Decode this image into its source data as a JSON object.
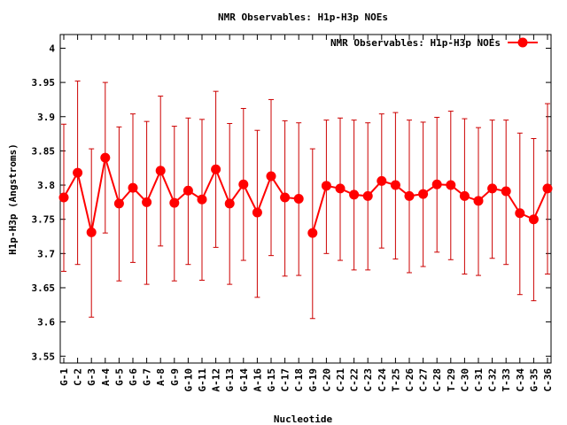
{
  "chart_data": {
    "type": "line",
    "title": "NMR Observables: H1p-H3p NOEs",
    "xlabel": "Nucleotide",
    "ylabel": "H1p-H3p (Angstroms)",
    "ylim": [
      3.54,
      4.02
    ],
    "yticks": [
      3.55,
      3.6,
      3.65,
      3.7,
      3.75,
      3.8,
      3.85,
      3.9,
      3.95,
      4
    ],
    "ytick_labels": [
      "3.55",
      "3.6",
      "3.65",
      "3.7",
      "3.75",
      "3.8",
      "3.85",
      "3.9",
      "3.95",
      "4"
    ],
    "legend": {
      "position": "top-right",
      "label": "NMR Observables: H1p-H3p NOEs"
    },
    "colors": {
      "series": "#ff0000",
      "errorbar": "#cc0000",
      "frame": "#000000"
    },
    "categories": [
      "G-1",
      "C-2",
      "G-3",
      "A-4",
      "G-5",
      "G-6",
      "G-7",
      "A-8",
      "G-9",
      "G-10",
      "G-11",
      "A-12",
      "G-13",
      "G-14",
      "A-16",
      "G-15",
      "C-17",
      "C-18",
      "G-19",
      "C-20",
      "C-21",
      "C-22",
      "C-23",
      "C-24",
      "T-25",
      "C-26",
      "C-27",
      "C-28",
      "T-29",
      "C-30",
      "C-31",
      "C-32",
      "T-33",
      "C-34",
      "G-35",
      "C-36"
    ],
    "series": [
      {
        "name": "NMR Observables: H1p-H3p NOEs",
        "segments": [
          {
            "indices": [
              0,
              1,
              2,
              3,
              4,
              5,
              6,
              7,
              8,
              9,
              10,
              11,
              12,
              13,
              14,
              15,
              16,
              17
            ],
            "values": [
              3.782,
              3.818,
              3.731,
              3.84,
              3.773,
              3.796,
              3.775,
              3.821,
              3.774,
              3.792,
              3.779,
              3.823,
              3.773,
              3.801,
              3.76,
              3.813,
              3.782,
              3.78
            ],
            "err_low": [
              3.674,
              3.684,
              3.607,
              3.73,
              3.66,
              3.687,
              3.655,
              3.711,
              3.66,
              3.684,
              3.661,
              3.709,
              3.655,
              3.69,
              3.636,
              3.697,
              3.667,
              3.668
            ],
            "err_high": [
              3.889,
              3.952,
              3.853,
              3.95,
              3.885,
              3.904,
              3.893,
              3.93,
              3.886,
              3.898,
              3.896,
              3.937,
              3.89,
              3.912,
              3.88,
              3.925,
              3.894,
              3.891
            ]
          },
          {
            "indices": [
              18,
              19,
              20,
              21,
              22,
              23,
              24,
              25,
              26,
              27,
              28,
              29,
              30,
              31,
              32,
              33,
              34,
              35
            ],
            "values": [
              3.73,
              3.799,
              3.795,
              3.786,
              3.784,
              3.806,
              3.8,
              3.784,
              3.787,
              3.801,
              3.8,
              3.784,
              3.777,
              3.795,
              3.791,
              3.759,
              3.75,
              3.795
            ],
            "err_low": [
              3.605,
              3.7,
              3.69,
              3.676,
              3.676,
              3.708,
              3.692,
              3.672,
              3.681,
              3.702,
              3.691,
              3.67,
              3.668,
              3.693,
              3.684,
              3.64,
              3.631,
              3.67
            ],
            "err_high": [
              3.853,
              3.895,
              3.898,
              3.895,
              3.891,
              3.904,
              3.906,
              3.895,
              3.892,
              3.899,
              3.908,
              3.897,
              3.884,
              3.895,
              3.895,
              3.876,
              3.868,
              3.919
            ]
          }
        ]
      }
    ]
  }
}
